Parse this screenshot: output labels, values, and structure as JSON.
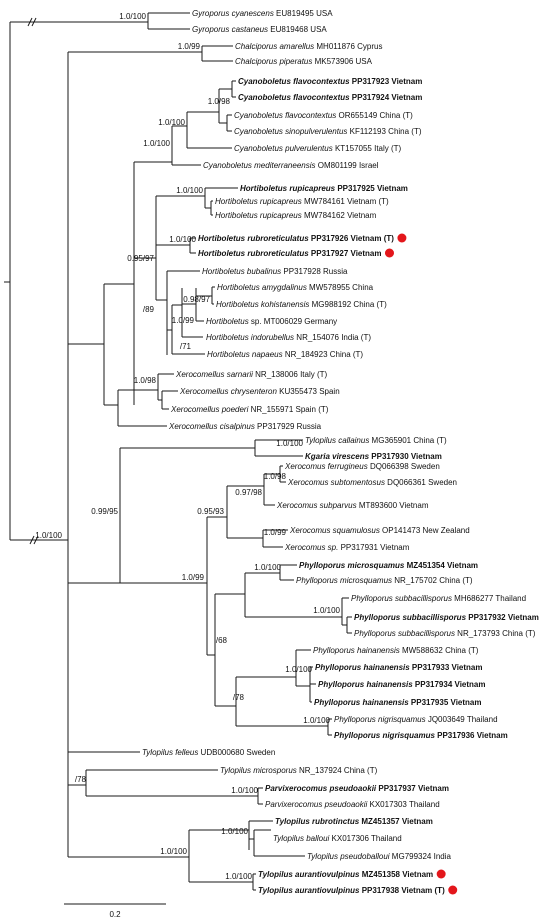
{
  "tips": [
    {
      "id": "t1",
      "genus": "Gyroporus cyanescens",
      "rest": "EU819495 USA",
      "bold": false,
      "dot": false
    },
    {
      "id": "t2",
      "genus": "Gyroporus castaneus",
      "rest": "EU819468 USA",
      "bold": false,
      "dot": false
    },
    {
      "id": "t3",
      "genus": "Chalciporus amarellus",
      "rest": "MH011876 Cyprus",
      "bold": false,
      "dot": false
    },
    {
      "id": "t4",
      "genus": "Chalciporus piperatus",
      "rest": "MK573906 USA",
      "bold": false,
      "dot": false
    },
    {
      "id": "t5",
      "genus": "Cyanoboletus flavocontextus",
      "rest": "PP317923 Vietnam",
      "bold": true,
      "dot": false
    },
    {
      "id": "t6",
      "genus": "Cyanoboletus flavocontextus",
      "rest": "PP317924 Vietnam",
      "bold": true,
      "dot": false
    },
    {
      "id": "t7",
      "genus": "Cyanoboletus flavocontextus",
      "rest": "OR655149 China (T)",
      "bold": false,
      "dot": false
    },
    {
      "id": "t8",
      "genus": "Cyanoboletus sinopulverulentus",
      "rest": "KF112193 China (T)",
      "bold": false,
      "dot": false
    },
    {
      "id": "t9",
      "genus": "Cyanoboletus pulverulentus",
      "rest": "KT157055 Italy (T)",
      "bold": false,
      "dot": false
    },
    {
      "id": "t10",
      "genus": "Cyanoboletus mediterraneensis",
      "rest": "OM801199 Israel",
      "bold": false,
      "dot": false
    },
    {
      "id": "t11",
      "genus": "Hortiboletus rupicapreus",
      "rest": "PP317925 Vietnam",
      "bold": true,
      "dot": false
    },
    {
      "id": "t12",
      "genus": "Hortiboletus rupicapreus",
      "rest": "MW784161 Vietnam (T)",
      "bold": false,
      "dot": false
    },
    {
      "id": "t13",
      "genus": "Hortiboletus rupicapreus",
      "rest": "MW784162 Vietnam",
      "bold": false,
      "dot": false
    },
    {
      "id": "t14",
      "genus": "Hortiboletus rubroreticulatus",
      "rest": "PP317926 Vietnam (T)",
      "bold": true,
      "dot": true
    },
    {
      "id": "t15",
      "genus": "Hortiboletus rubroreticulatus",
      "rest": "PP317927 Vietnam",
      "bold": true,
      "dot": true
    },
    {
      "id": "t16",
      "genus": "Hortiboletus bubalinus",
      "rest": "PP317928 Russia",
      "bold": false,
      "dot": false
    },
    {
      "id": "t17",
      "genus": "Hortiboletus amygdalinus",
      "rest": "MW578955 China",
      "bold": false,
      "dot": false
    },
    {
      "id": "t18",
      "genus": "Hortiboletus kohistanensis",
      "rest": "MG988192 China (T)",
      "bold": false,
      "dot": false
    },
    {
      "id": "t19",
      "genus": "Hortiboletus",
      "rest": "sp. MT006029 Germany",
      "bold": false,
      "dot": false
    },
    {
      "id": "t20",
      "genus": "Hortiboletus indorubellus",
      "rest": "NR_154076 India (T)",
      "bold": false,
      "dot": false
    },
    {
      "id": "t21",
      "genus": "Hortiboletus napaeus",
      "rest": "NR_184923 China (T)",
      "bold": false,
      "dot": false
    },
    {
      "id": "t22",
      "genus": "Xerocomellus sarnarii",
      "rest": "NR_138006 Italy (T)",
      "bold": false,
      "dot": false
    },
    {
      "id": "t23",
      "genus": "Xerocomellus chrysenteron",
      "rest": "KU355473 Spain",
      "bold": false,
      "dot": false
    },
    {
      "id": "t24",
      "genus": "Xerocomellus poederi",
      "rest": "NR_155971 Spain (T)",
      "bold": false,
      "dot": false
    },
    {
      "id": "t25",
      "genus": "Xerocomellus cisalpinus",
      "rest": "PP317929 Russia",
      "bold": false,
      "dot": false
    },
    {
      "id": "t26",
      "genus": "Tylopilus callainus",
      "rest": "MG365901 China (T)",
      "bold": false,
      "dot": false
    },
    {
      "id": "t27",
      "genus": "Kgaria virescens",
      "rest": "PP317930 Vietnam",
      "bold": true,
      "dot": false
    },
    {
      "id": "t28",
      "genus": "Xerocomus ferrugineus",
      "rest": "DQ066398 Sweden",
      "bold": false,
      "dot": false
    },
    {
      "id": "t29",
      "genus": "Xerocomus subtomentosus",
      "rest": "DQ066361 Sweden",
      "bold": false,
      "dot": false
    },
    {
      "id": "t30",
      "genus": "Xerocomus subparvus",
      "rest": "MT893600 Vietnam",
      "bold": false,
      "dot": false
    },
    {
      "id": "t31",
      "genus": "Xerocomus squamulosus",
      "rest": "OP141473 New Zealand",
      "bold": false,
      "dot": false
    },
    {
      "id": "t32",
      "genus": "Xerocomus sp.",
      "rest": "PP317931 Vietnam",
      "bold": false,
      "dot": false
    },
    {
      "id": "t33",
      "genus": "Phylloporus microsquamus",
      "rest": "MZ451354 Vietnam",
      "bold": true,
      "dot": false
    },
    {
      "id": "t34",
      "genus": "Phylloporus microsquamus",
      "rest": "NR_175702 China (T)",
      "bold": false,
      "dot": false
    },
    {
      "id": "t35",
      "genus": "Phylloporus subbacillisporus",
      "rest": "MH686277 Thailand",
      "bold": false,
      "dot": false
    },
    {
      "id": "t36",
      "genus": "Phylloporus subbacillisporus",
      "rest": "PP317932 Vietnam",
      "bold": true,
      "dot": false
    },
    {
      "id": "t37",
      "genus": "Phylloporus subbacillisporus",
      "rest": "NR_173793 China (T)",
      "bold": false,
      "dot": false
    },
    {
      "id": "t38",
      "genus": "Phylloporus hainanensis",
      "rest": "MW588632 China (T)",
      "bold": false,
      "dot": false
    },
    {
      "id": "t39",
      "genus": "Phylloporus hainanensis",
      "rest": "PP317933 Vietnam",
      "bold": true,
      "dot": false
    },
    {
      "id": "t40",
      "genus": "Phylloporus hainanensis",
      "rest": "PP317934 Vietnam",
      "bold": true,
      "dot": false
    },
    {
      "id": "t41",
      "genus": "Phylloporus hainanensis",
      "rest": "PP317935 Vietnam",
      "bold": true,
      "dot": false
    },
    {
      "id": "t42",
      "genus": "Phylloporus nigrisquamus",
      "rest": "JQ003649 Thailand",
      "bold": false,
      "dot": false
    },
    {
      "id": "t43",
      "genus": "Phylloporus nigrisquamus",
      "rest": "PP317936 Vietnam",
      "bold": true,
      "dot": false
    },
    {
      "id": "t44",
      "genus": "Tylopilus felleus",
      "rest": "UDB000680 Sweden",
      "bold": false,
      "dot": false
    },
    {
      "id": "t45",
      "genus": "Tylopilus microsporus",
      "rest": "NR_137924 China (T)",
      "bold": false,
      "dot": false
    },
    {
      "id": "t46",
      "genus": "Parvixerocomus pseudoaokii",
      "rest": "PP317937 Vietnam",
      "bold": true,
      "dot": false
    },
    {
      "id": "t47",
      "genus": "Parvixerocomus pseudoaokii",
      "rest": "KX017303 Thailand",
      "bold": false,
      "dot": false
    },
    {
      "id": "t48",
      "genus": "Tylopilus rubrotinctus",
      "rest": "MZ451357 Vietnam",
      "bold": true,
      "dot": false
    },
    {
      "id": "t49",
      "genus": "Tylopilus balloui",
      "rest": "KX017306 Thailand",
      "bold": false,
      "dot": false
    },
    {
      "id": "t50",
      "genus": "Tylopilus pseudoballoui",
      "rest": "MG799324 India",
      "bold": false,
      "dot": false
    },
    {
      "id": "t51",
      "genus": "Tylopilus aurantiovulpinus",
      "rest": "MZ451358 Vietnam",
      "bold": true,
      "dot": true
    },
    {
      "id": "t52",
      "genus": "Tylopilus aurantiovulpinus",
      "rest": "PP317938 Vietnam (T)",
      "bold": true,
      "dot": true
    }
  ],
  "supports": [
    {
      "id": "s1",
      "text": "1.0/100"
    },
    {
      "id": "s2",
      "text": "1.0/99"
    },
    {
      "id": "s3",
      "text": "1.0/98"
    },
    {
      "id": "s4",
      "text": "1.0/100"
    },
    {
      "id": "s5",
      "text": "1.0/100"
    },
    {
      "id": "s6",
      "text": "1.0/100"
    },
    {
      "id": "s7",
      "text": "1.0/100"
    },
    {
      "id": "s8",
      "text": "0.95/97"
    },
    {
      "id": "s9",
      "text": "/89"
    },
    {
      "id": "s10",
      "text": "0.98/97"
    },
    {
      "id": "s11",
      "text": "1.0/99"
    },
    {
      "id": "s12",
      "text": "/71"
    },
    {
      "id": "s13",
      "text": "1.0/98"
    },
    {
      "id": "s14",
      "text": "1.0/100"
    },
    {
      "id": "s15",
      "text": "0.99/95"
    },
    {
      "id": "s16",
      "text": "1.0/98"
    },
    {
      "id": "s17",
      "text": "0.97/98"
    },
    {
      "id": "s18",
      "text": "0.95/93"
    },
    {
      "id": "s19",
      "text": "1.0/99"
    },
    {
      "id": "s20",
      "text": "1.0/99"
    },
    {
      "id": "s21",
      "text": "1.0/100"
    },
    {
      "id": "s22",
      "text": "1.0/100"
    },
    {
      "id": "s23",
      "text": "/68"
    },
    {
      "id": "s24",
      "text": "1.0/100"
    },
    {
      "id": "s25",
      "text": "/78"
    },
    {
      "id": "s26",
      "text": "1.0/100"
    },
    {
      "id": "s27",
      "text": "1.0/100"
    },
    {
      "id": "s28",
      "text": "/78"
    },
    {
      "id": "s29",
      "text": "1.0/100"
    },
    {
      "id": "s30",
      "text": "1.0/100"
    },
    {
      "id": "s31",
      "text": "1.0/100"
    },
    {
      "id": "s32",
      "text": "1.0/100"
    }
  ],
  "scale_bar": {
    "label": "0.2"
  },
  "colors": {
    "line": "#1a1a1a",
    "marker": "#e3161b"
  }
}
